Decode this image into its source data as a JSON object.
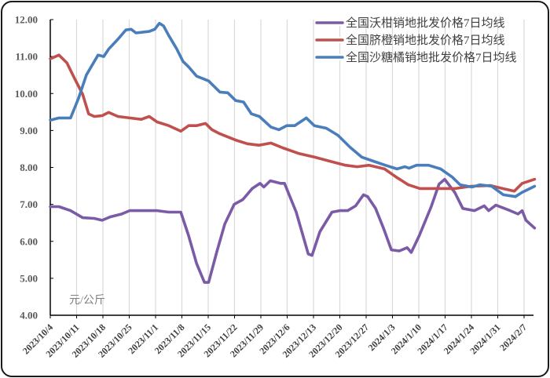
{
  "chart_data": {
    "type": "line",
    "title": "",
    "xlabel": "",
    "ylabel": "元/公斤",
    "unit_label": "元/公斤",
    "ylim": [
      4.0,
      12.0
    ],
    "yticks": [
      "4.00",
      "5.00",
      "6.00",
      "7.00",
      "8.00",
      "9.00",
      "10.00",
      "11.00",
      "12.00"
    ],
    "x_tick_labels": [
      "2023/10/4",
      "2023/10/11",
      "2023/10/18",
      "2023/10/25",
      "2023/11/1",
      "2023/11/8",
      "2023/11/15",
      "2023/11/22",
      "2023/11/29",
      "2023/12/6",
      "2023/12/13",
      "2023/12/20",
      "2023/12/27",
      "2024/1/3",
      "2024/1/10",
      "2024/1/17",
      "2024/1/24",
      "2024/1/31",
      "2024/2/7"
    ],
    "grid": {
      "vertical": true,
      "horizontal": false
    },
    "legend_position": "top-right",
    "x_day_offsets_note": "series x = days since 2023/10/4",
    "series": [
      {
        "name": "全国沃柑销地批发价格7日均线",
        "color": "#7B5BA6",
        "points": [
          [
            0,
            6.94
          ],
          [
            2.3,
            6.94
          ],
          [
            5.4,
            6.83
          ],
          [
            8.6,
            6.64
          ],
          [
            11.7,
            6.62
          ],
          [
            13.8,
            6.57
          ],
          [
            15.9,
            6.66
          ],
          [
            19,
            6.74
          ],
          [
            21.1,
            6.83
          ],
          [
            24.2,
            6.83
          ],
          [
            28.4,
            6.83
          ],
          [
            31.5,
            6.79
          ],
          [
            34.7,
            6.79
          ],
          [
            36.8,
            6.15
          ],
          [
            38.9,
            5.4
          ],
          [
            41,
            4.89
          ],
          [
            42.1,
            4.89
          ],
          [
            44.3,
            5.72
          ],
          [
            46.4,
            6.47
          ],
          [
            48.9,
            7.0
          ],
          [
            51.2,
            7.13
          ],
          [
            53.7,
            7.43
          ],
          [
            55.8,
            7.57
          ],
          [
            56.8,
            7.47
          ],
          [
            58.5,
            7.64
          ],
          [
            61.2,
            7.57
          ],
          [
            62.3,
            7.57
          ],
          [
            65.4,
            6.79
          ],
          [
            68.6,
            5.66
          ],
          [
            69.6,
            5.62
          ],
          [
            71.7,
            6.26
          ],
          [
            74.9,
            6.79
          ],
          [
            77,
            6.83
          ],
          [
            79.1,
            6.83
          ],
          [
            81.2,
            6.96
          ],
          [
            83.3,
            7.26
          ],
          [
            84.4,
            7.21
          ],
          [
            86.5,
            6.89
          ],
          [
            88.6,
            6.36
          ],
          [
            90.7,
            5.77
          ],
          [
            92.8,
            5.74
          ],
          [
            94.9,
            5.83
          ],
          [
            96,
            5.7
          ],
          [
            98.1,
            6.15
          ],
          [
            101.3,
            6.94
          ],
          [
            103.4,
            7.55
          ],
          [
            104.9,
            7.68
          ],
          [
            107.6,
            7.32
          ],
          [
            109.7,
            6.89
          ],
          [
            112.8,
            6.83
          ],
          [
            115.4,
            6.96
          ],
          [
            116.6,
            6.83
          ],
          [
            118.5,
            6.98
          ],
          [
            122.3,
            6.83
          ],
          [
            124.4,
            6.74
          ],
          [
            125.5,
            6.83
          ],
          [
            126.5,
            6.57
          ],
          [
            128.8,
            6.36
          ]
        ]
      },
      {
        "name": "全国脐橙销地批发价格7日均线",
        "color": "#C0504D",
        "points": [
          [
            0,
            10.94
          ],
          [
            2.3,
            11.04
          ],
          [
            4.4,
            10.83
          ],
          [
            6.5,
            10.4
          ],
          [
            8.6,
            9.98
          ],
          [
            10.2,
            9.45
          ],
          [
            11.7,
            9.38
          ],
          [
            13.8,
            9.4
          ],
          [
            15.5,
            9.49
          ],
          [
            18,
            9.38
          ],
          [
            21.1,
            9.34
          ],
          [
            24.2,
            9.3
          ],
          [
            26.3,
            9.38
          ],
          [
            28.4,
            9.23
          ],
          [
            31.5,
            9.13
          ],
          [
            34.7,
            8.98
          ],
          [
            36.8,
            9.13
          ],
          [
            38.9,
            9.13
          ],
          [
            41.3,
            9.19
          ],
          [
            43,
            9.02
          ],
          [
            45.1,
            8.91
          ],
          [
            49.3,
            8.74
          ],
          [
            52.4,
            8.64
          ],
          [
            55.5,
            8.6
          ],
          [
            58.7,
            8.66
          ],
          [
            61.8,
            8.53
          ],
          [
            66,
            8.38
          ],
          [
            70.2,
            8.28
          ],
          [
            74.3,
            8.17
          ],
          [
            78.5,
            8.06
          ],
          [
            81.6,
            8.02
          ],
          [
            84.8,
            8.06
          ],
          [
            88.9,
            7.96
          ],
          [
            92,
            7.74
          ],
          [
            95.2,
            7.53
          ],
          [
            98.3,
            7.43
          ],
          [
            101.5,
            7.43
          ],
          [
            104.6,
            7.43
          ],
          [
            107.7,
            7.43
          ],
          [
            111.9,
            7.49
          ],
          [
            117.1,
            7.51
          ],
          [
            120.3,
            7.43
          ],
          [
            123.4,
            7.36
          ],
          [
            125.5,
            7.57
          ],
          [
            128.8,
            7.68
          ]
        ]
      },
      {
        "name": "全国沙糖橘销地批发价格7日均线",
        "color": "#4A7EBB",
        "points": [
          [
            0,
            9.28
          ],
          [
            2.3,
            9.34
          ],
          [
            5.4,
            9.34
          ],
          [
            7.5,
            9.87
          ],
          [
            9.6,
            10.5
          ],
          [
            12.7,
            11.04
          ],
          [
            14.2,
            11.0
          ],
          [
            15.5,
            11.2
          ],
          [
            18,
            11.47
          ],
          [
            20.1,
            11.72
          ],
          [
            21.5,
            11.74
          ],
          [
            22.8,
            11.64
          ],
          [
            26.3,
            11.68
          ],
          [
            27.8,
            11.74
          ],
          [
            29,
            11.9
          ],
          [
            30.1,
            11.83
          ],
          [
            31.5,
            11.57
          ],
          [
            33.6,
            11.21
          ],
          [
            35.3,
            10.87
          ],
          [
            36.8,
            10.72
          ],
          [
            38.9,
            10.47
          ],
          [
            42.1,
            10.34
          ],
          [
            45.1,
            10.04
          ],
          [
            47.2,
            10.02
          ],
          [
            49.3,
            9.81
          ],
          [
            51.4,
            9.77
          ],
          [
            53.5,
            9.45
          ],
          [
            55.6,
            9.38
          ],
          [
            58.7,
            9.09
          ],
          [
            60.8,
            9.02
          ],
          [
            62.9,
            9.13
          ],
          [
            65,
            9.13
          ],
          [
            68.1,
            9.34
          ],
          [
            70.2,
            9.13
          ],
          [
            73.4,
            9.06
          ],
          [
            76.5,
            8.87
          ],
          [
            79.7,
            8.55
          ],
          [
            82.8,
            8.28
          ],
          [
            85.9,
            8.17
          ],
          [
            89.1,
            8.06
          ],
          [
            92.2,
            7.96
          ],
          [
            94.3,
            8.02
          ],
          [
            95.4,
            7.98
          ],
          [
            97.4,
            8.06
          ],
          [
            100.6,
            8.06
          ],
          [
            103.8,
            7.96
          ],
          [
            106.9,
            7.74
          ],
          [
            109,
            7.53
          ],
          [
            112.1,
            7.47
          ],
          [
            114.3,
            7.53
          ],
          [
            117.4,
            7.49
          ],
          [
            120.5,
            7.26
          ],
          [
            123.7,
            7.21
          ],
          [
            125.4,
            7.32
          ],
          [
            128.8,
            7.49
          ]
        ]
      }
    ]
  },
  "legend": {
    "items": [
      {
        "label": "全国沃柑销地批发价格7日均线",
        "color": "#7B5BA6"
      },
      {
        "label": "全国脐橙销地批发价格7日均线",
        "color": "#C0504D"
      },
      {
        "label": "全国沙糖橘销地批发价格7日均线",
        "color": "#4A7EBB"
      }
    ]
  },
  "unit_label": "元/公斤"
}
